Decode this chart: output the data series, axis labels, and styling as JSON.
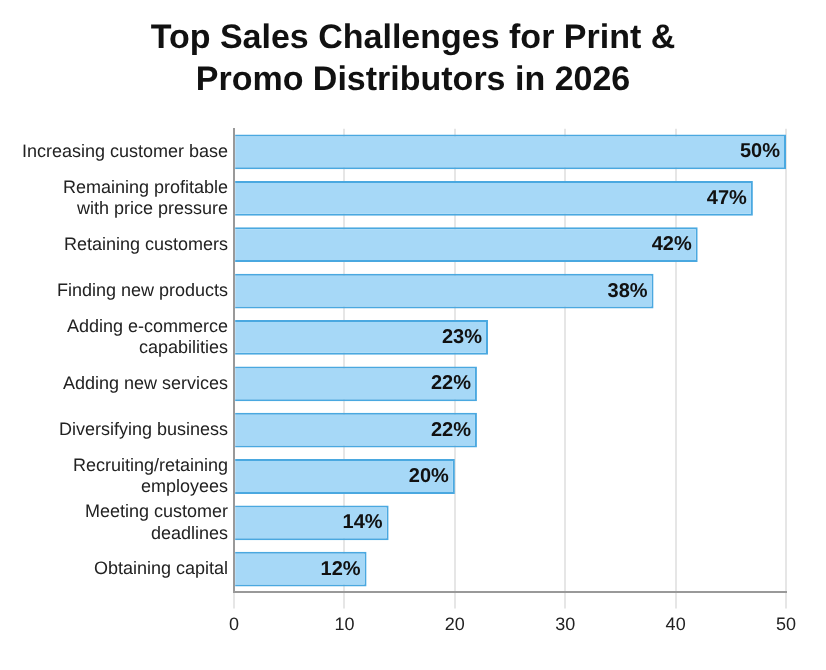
{
  "chart_data": {
    "type": "bar",
    "orientation": "horizontal",
    "title": "Top Sales Challenges for Print & Promo Distributors in 2026",
    "categories": [
      "Increasing customer base",
      "Remaining profitable with price pressure",
      "Retaining customers",
      "Finding new products",
      "Adding e-commerce capabilities",
      "Adding new services",
      "Diversifying business",
      "Recruiting/retaining employees",
      "Meeting customer deadlines",
      "Obtaining capital"
    ],
    "values": [
      50,
      47,
      42,
      38,
      23,
      22,
      22,
      20,
      14,
      12
    ],
    "value_labels": [
      "50%",
      "47%",
      "42%",
      "38%",
      "23%",
      "22%",
      "22%",
      "20%",
      "14%",
      "12%"
    ],
    "color": "#a6d8f7",
    "xlim": [
      0,
      50
    ],
    "xticks": [
      0,
      10,
      20,
      30,
      40,
      50
    ],
    "grid": "x"
  }
}
